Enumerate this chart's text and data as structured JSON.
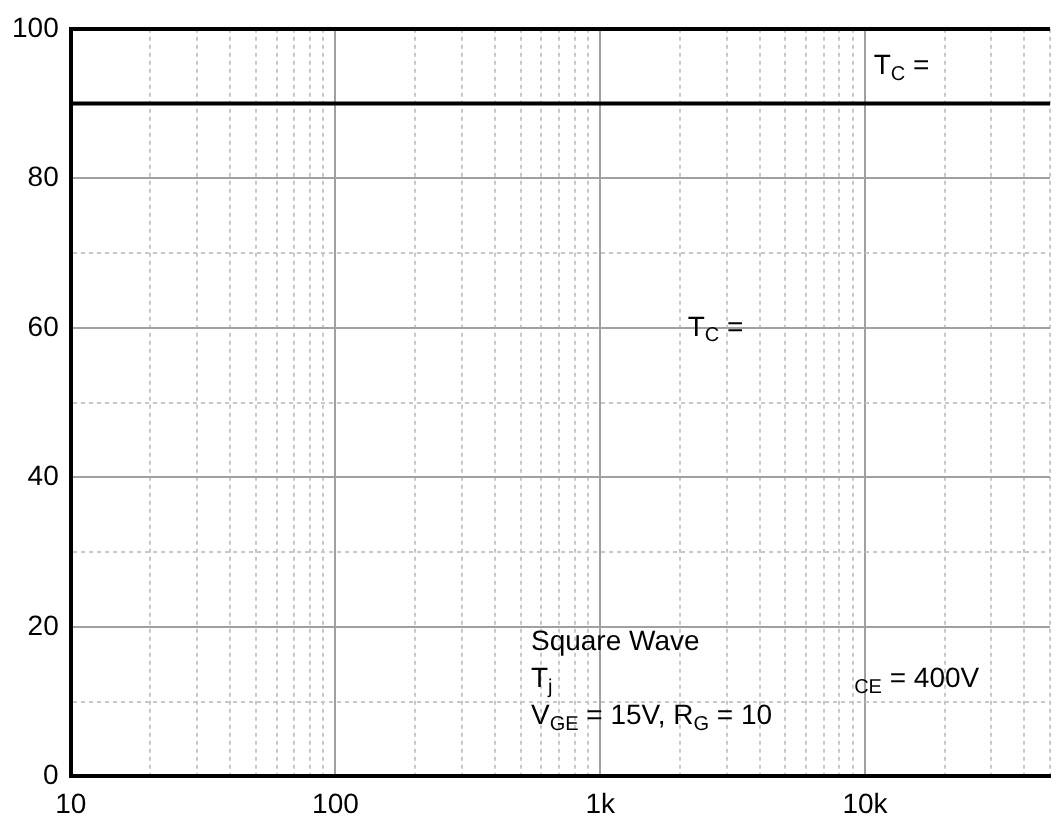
{
  "chart_data": {
    "type": "line",
    "x": [
      10,
      50000
    ],
    "series": [
      {
        "color": "#000000",
        "values": [
          90,
          90
        ]
      }
    ],
    "xlim": [
      10,
      50000
    ],
    "ylim": [
      0,
      100
    ],
    "log": "x",
    "xticks": [
      {
        "value": 10,
        "label": "10"
      },
      {
        "value": 20,
        "label": null
      },
      {
        "value": 30,
        "label": null
      },
      {
        "value": 40,
        "label": null
      },
      {
        "value": 50,
        "label": null
      },
      {
        "value": 60,
        "label": null
      },
      {
        "value": 70,
        "label": null
      },
      {
        "value": 80,
        "label": null
      },
      {
        "value": 90,
        "label": null
      },
      {
        "value": 100,
        "label": "100"
      },
      {
        "value": 200,
        "label": null
      },
      {
        "value": 300,
        "label": null
      },
      {
        "value": 400,
        "label": null
      },
      {
        "value": 500,
        "label": null
      },
      {
        "value": 600,
        "label": null
      },
      {
        "value": 700,
        "label": null
      },
      {
        "value": 800,
        "label": null
      },
      {
        "value": 900,
        "label": null
      },
      {
        "value": 1000,
        "label": "1k"
      },
      {
        "value": 2000,
        "label": null
      },
      {
        "value": 3000,
        "label": null
      },
      {
        "value": 4000,
        "label": null
      },
      {
        "value": 5000,
        "label": null
      },
      {
        "value": 6000,
        "label": null
      },
      {
        "value": 7000,
        "label": null
      },
      {
        "value": 8000,
        "label": null
      },
      {
        "value": 9000,
        "label": null
      },
      {
        "value": 10000,
        "label": "10k"
      },
      {
        "value": 20000,
        "label": null
      },
      {
        "value": 30000,
        "label": null
      },
      {
        "value": 40000,
        "label": null
      },
      {
        "value": 50000,
        "label": null
      }
    ],
    "yticks": [
      0,
      {
        "value": 10,
        "label": null
      },
      20,
      {
        "value": 30,
        "label": null
      },
      40,
      {
        "value": 50,
        "label": null
      },
      60,
      {
        "value": 70,
        "label": null
      },
      80,
      {
        "value": 90,
        "label": null
      },
      100
    ],
    "grid": true,
    "marker": "none",
    "line_style": "solid",
    "annotations": [
      "T$_{C}$ =",
      "T$_{C}$ =",
      "Square Wave",
      "T$_{j}$",
      "$_{CE}$ = 400V",
      "V$_{GE}$ = 15V, R$_{G}$ = 10"
    ]
  }
}
